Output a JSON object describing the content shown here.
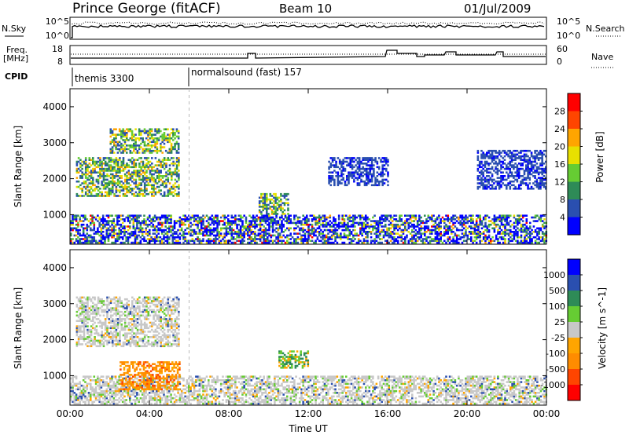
{
  "header": {
    "station": "Prince George (fitACF)",
    "beam": "Beam 10",
    "date": "01/Jul/2009"
  },
  "top_panels": {
    "nsky_label": "N.Sky",
    "nsearch_label": "N.Search",
    "count_ticks": [
      "10^5",
      "10^0"
    ],
    "freq_label_line1": "Freq.",
    "freq_label_line2": "[MHz]",
    "freq_ticks": [
      "18",
      "8"
    ],
    "nave_label": "Nave",
    "nave_ticks": [
      "60",
      "0"
    ],
    "cpid_label": "CPID",
    "cpid_segments": [
      {
        "label": "themis 3300",
        "start_hour": 0
      },
      {
        "label": "normalsound (fast) 157",
        "start_hour": 6
      }
    ]
  },
  "chart_data": [
    {
      "type": "heatmap",
      "name": "power",
      "x_range_hours": [
        0,
        24
      ],
      "xticks": [
        "00:00",
        "04:00",
        "08:00",
        "12:00",
        "16:00",
        "20:00",
        "00:00"
      ],
      "ylabel": "Slant Range [km]",
      "ylim": [
        180,
        4500
      ],
      "yticks": [
        "1000",
        "2000",
        "3000",
        "4000"
      ],
      "colorbar": {
        "label": "Power [dB]",
        "ticks": [
          "4",
          "8",
          "12",
          "16",
          "20",
          "24",
          "28"
        ],
        "range": [
          0,
          30
        ],
        "colors": [
          "#0000ff",
          "#2a4fb0",
          "#2e8b57",
          "#66cc33",
          "#e8e000",
          "#ffa500",
          "#ff4500",
          "#ff0000"
        ]
      },
      "echo_regions": [
        {
          "t0": 0.0,
          "t1": 24.0,
          "r0": 200,
          "r1": 1000,
          "level": "mixed-low-high"
        },
        {
          "t0": 0.3,
          "t1": 5.5,
          "r0": 1500,
          "r1": 2600,
          "level": "mid"
        },
        {
          "t0": 2.0,
          "t1": 5.5,
          "r0": 2700,
          "r1": 3400,
          "level": "mid"
        },
        {
          "t0": 9.5,
          "t1": 11.0,
          "r0": 1000,
          "r1": 1600,
          "level": "mid"
        },
        {
          "t0": 13.0,
          "t1": 16.0,
          "r0": 1800,
          "r1": 2600,
          "level": "low"
        },
        {
          "t0": 20.5,
          "t1": 24.0,
          "r0": 1700,
          "r1": 2800,
          "level": "low"
        }
      ]
    },
    {
      "type": "heatmap",
      "name": "velocity",
      "x_range_hours": [
        0,
        24
      ],
      "xticks": [
        "00:00",
        "04:00",
        "08:00",
        "12:00",
        "16:00",
        "20:00",
        "00:00"
      ],
      "xlabel": "Time UT",
      "ylabel": "Slant Range [km]",
      "ylim": [
        180,
        4500
      ],
      "yticks": [
        "1000",
        "2000",
        "3000",
        "4000"
      ],
      "colorbar": {
        "label": "Velocity [m s^-1]",
        "ticks": [
          "1000",
          "500",
          "100",
          "25",
          "-25",
          "-100",
          "-500",
          "-1000"
        ],
        "colors": [
          "#0000ff",
          "#2a4fb0",
          "#2e8b57",
          "#66cc33",
          "#c8c8c8",
          "#ffa500",
          "#ff8c00",
          "#ff4500",
          "#ff0000"
        ]
      },
      "echo_regions": [
        {
          "t0": 0.0,
          "t1": 24.0,
          "r0": 200,
          "r1": 1000,
          "level": "ground-scatter"
        },
        {
          "t0": 2.5,
          "t1": 5.5,
          "r0": 600,
          "r1": 1400,
          "level": "receding"
        },
        {
          "t0": 10.5,
          "t1": 12.0,
          "r0": 1200,
          "r1": 1700,
          "level": "approaching"
        },
        {
          "t0": 0.3,
          "t1": 5.5,
          "r0": 1800,
          "r1": 3200,
          "level": "ground-scatter"
        }
      ]
    }
  ]
}
